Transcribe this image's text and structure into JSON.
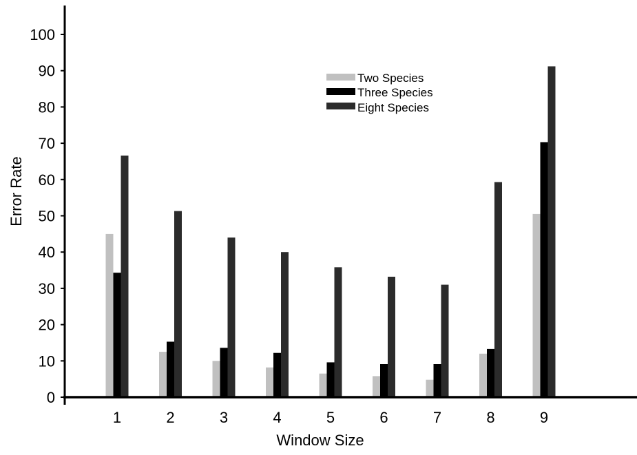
{
  "chart_data": {
    "type": "bar",
    "xlabel": "Window Size",
    "ylabel": "Error Rate",
    "ylim": [
      0,
      100
    ],
    "yticks": [
      0,
      10,
      20,
      30,
      40,
      50,
      60,
      70,
      80,
      90,
      100
    ],
    "categories": [
      "1",
      "2",
      "3",
      "4",
      "5",
      "6",
      "7",
      "8",
      "9"
    ],
    "series": [
      {
        "name": "Two Species",
        "color": "#c0c0c0",
        "values": [
          45,
          12.5,
          10,
          8.2,
          6.5,
          5.8,
          4.8,
          12,
          50.5
        ]
      },
      {
        "name": "Three Species",
        "color": "#000000",
        "values": [
          34.3,
          15.3,
          13.6,
          12.2,
          9.6,
          9.1,
          9.1,
          13.3,
          70.3
        ]
      },
      {
        "name": "Eight Species",
        "color": "#2b2b2b",
        "values": [
          66.6,
          51.3,
          44,
          40,
          35.8,
          33.2,
          31,
          59.3,
          91.2
        ]
      }
    ],
    "legend_position": "top-center",
    "grid": false
  }
}
